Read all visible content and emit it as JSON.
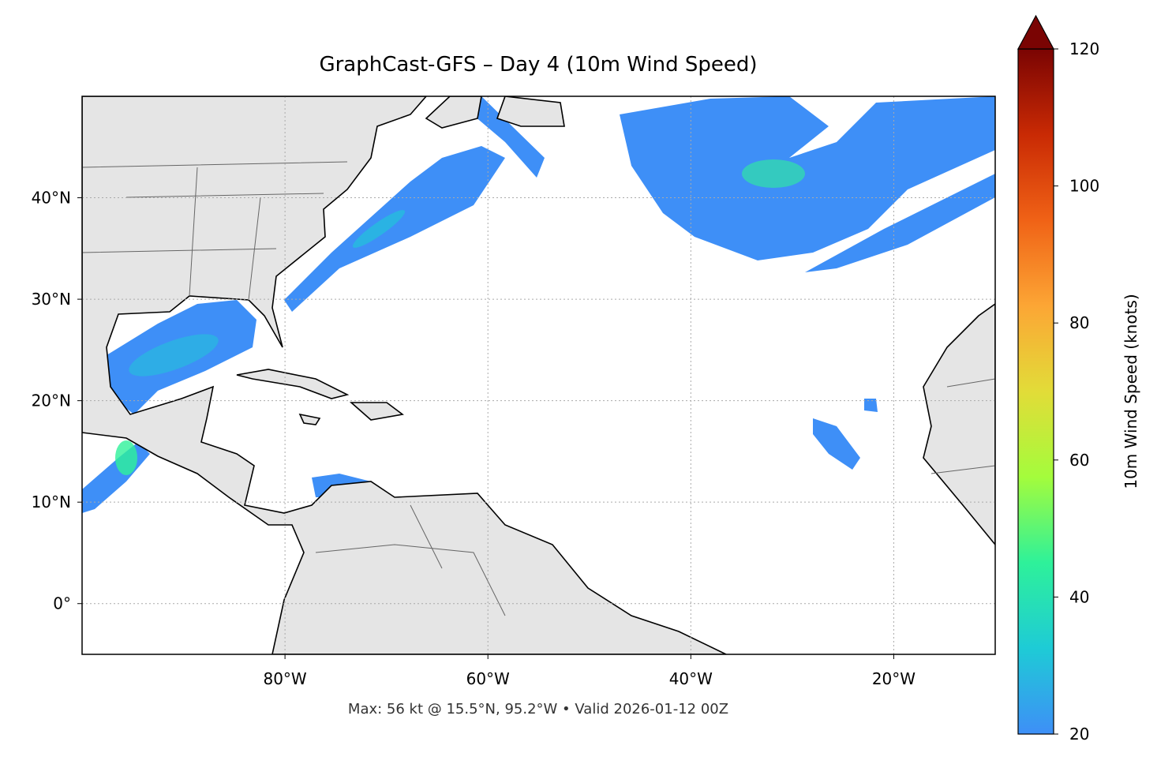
{
  "chart_data": {
    "type": "map",
    "title": "GraphCast-GFS – Day 4 (10m Wind Speed)",
    "caption": "Max: 56 kt @ 15.5°N, 95.2°W • Valid 2026-01-12 00Z",
    "xlim": [
      -100,
      -10
    ],
    "ylim": [
      -5,
      50
    ],
    "xticks": [
      {
        "value": -80,
        "label": "80°W"
      },
      {
        "value": -60,
        "label": "60°W"
      },
      {
        "value": -40,
        "label": "40°W"
      },
      {
        "value": -20,
        "label": "20°W"
      }
    ],
    "yticks": [
      {
        "value": 0,
        "label": "0°"
      },
      {
        "value": 10,
        "label": "10°N"
      },
      {
        "value": 20,
        "label": "20°N"
      },
      {
        "value": 30,
        "label": "30°N"
      },
      {
        "value": 40,
        "label": "40°N"
      }
    ],
    "grid": true,
    "colorbar": {
      "label": "10m Wind Speed (knots)",
      "lim": [
        20,
        120
      ],
      "ticks": [
        20,
        40,
        60,
        80,
        100,
        120
      ],
      "colors": [
        "#3e8ff7",
        "#1ecbd6",
        "#2ef19a",
        "#a4fc3c",
        "#e2dc38",
        "#fca635",
        "#f06216",
        "#c92a04",
        "#7a0403"
      ]
    }
  }
}
